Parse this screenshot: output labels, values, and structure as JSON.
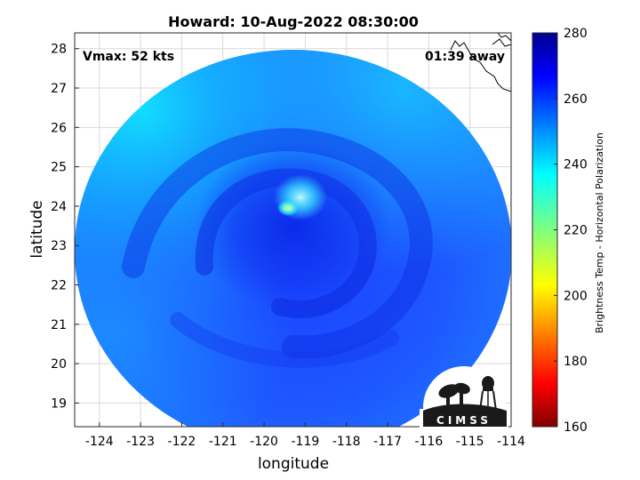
{
  "title": "Howard: 10-Aug-2022 08:30:00",
  "annotations": {
    "vmax": "Vmax: 52 kts",
    "time_away": "01:39 away"
  },
  "axes": {
    "xlabel": "longitude",
    "ylabel": "latitude",
    "xlim": [
      -124.6,
      -114
    ],
    "ylim": [
      18.4,
      28.4
    ],
    "xticks": [
      -124,
      -123,
      -122,
      -121,
      -120,
      -119,
      -118,
      -117,
      -116,
      -115,
      -114
    ],
    "yticks": [
      19,
      20,
      21,
      22,
      23,
      24,
      25,
      26,
      27,
      28
    ],
    "grid": true
  },
  "colorbar": {
    "label": "Brightness Temp - Horizontal Polarization",
    "range": [
      160,
      280
    ],
    "ticks": [
      160,
      180,
      200,
      220,
      240,
      260,
      280
    ],
    "colormap": "jet"
  },
  "logo": {
    "text": "CIMSS"
  },
  "storm": {
    "center_lon": -119.4,
    "center_lat": 23.8
  },
  "chart_data": {
    "type": "heatmap",
    "title": "Howard: 10-Aug-2022 08:30:00",
    "xlabel": "longitude",
    "ylabel": "latitude",
    "xlim": [
      -124.6,
      -114
    ],
    "ylim": [
      18.4,
      28.4
    ],
    "colorbar_label": "Brightness Temp - Horizontal Polarization",
    "colorbar_range": [
      160,
      280
    ]
  }
}
